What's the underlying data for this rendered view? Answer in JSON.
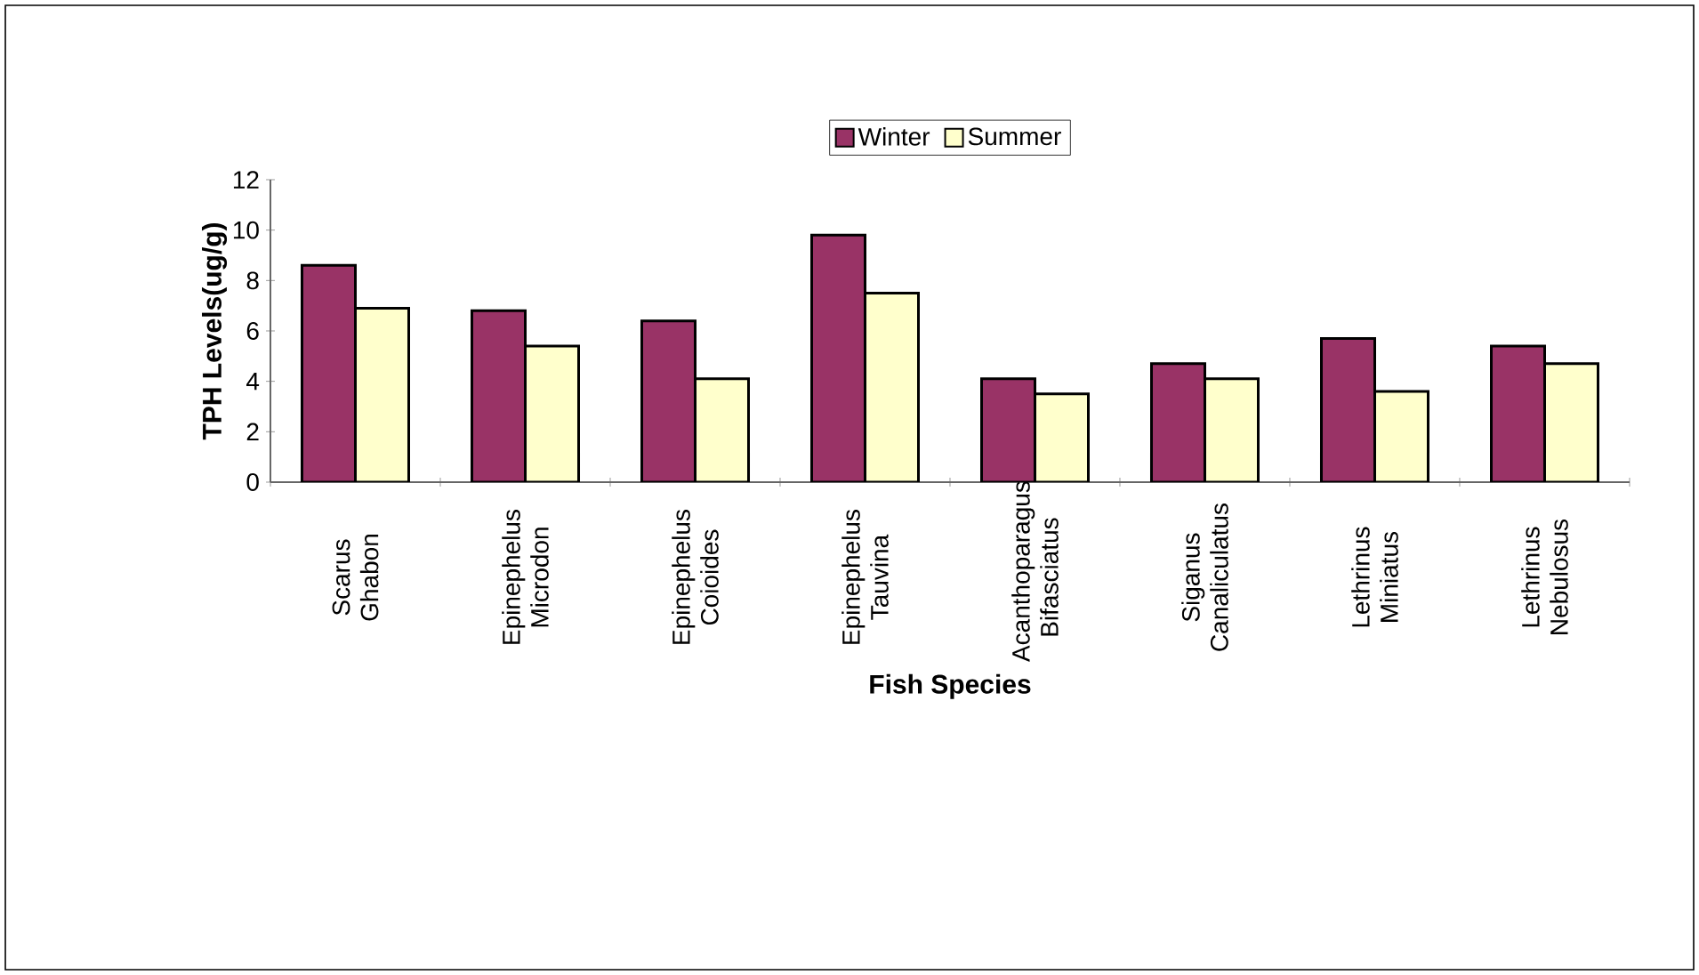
{
  "chart_data": {
    "type": "bar",
    "xlabel": "Fish Species",
    "ylabel": "TPH Levels(ug/g)",
    "categories": [
      "Scarus  Ghabon",
      "Epinephelus Microdon",
      "Epinephelus Coioides",
      "Epinephelus Tauvina",
      "Acanthoparagus Bifasciatus",
      "Siganus Canaliculatus",
      "Lethrinus Miniatus",
      "Lethrinus Nebulosus"
    ],
    "series": [
      {
        "name": "Winter",
        "color": "#993366",
        "values": [
          8.6,
          6.8,
          6.4,
          9.8,
          4.1,
          4.7,
          5.7,
          5.4
        ]
      },
      {
        "name": "Summer",
        "color": "#ffffcc",
        "values": [
          6.9,
          5.4,
          4.1,
          7.5,
          3.5,
          4.1,
          3.6,
          4.7
        ]
      }
    ],
    "ylim": [
      0,
      12
    ],
    "yticks": [
      0,
      2,
      4,
      6,
      8,
      10,
      12
    ],
    "grid": false,
    "legend": "top"
  }
}
